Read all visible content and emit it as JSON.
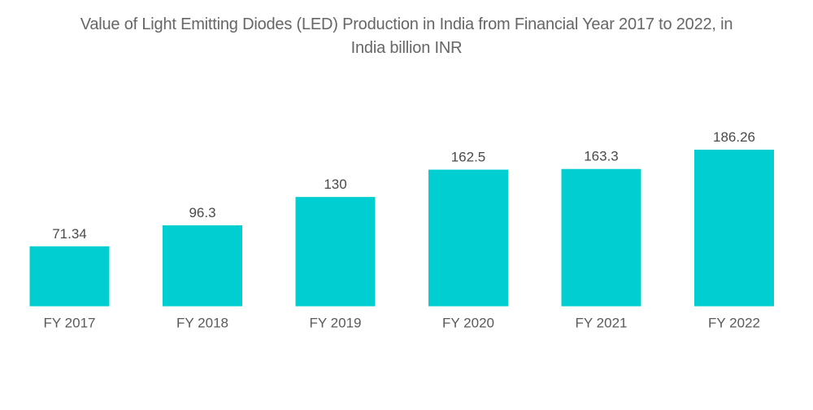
{
  "chart_data": {
    "type": "bar",
    "title_lines": [
      "Value of Light Emitting Diodes (LED) Production in India from Financial Year 2017 to 2022, in",
      "India billion INR"
    ],
    "title": "Value of Light Emitting Diodes (LED) Production in India from Financial Year 2017 to 2022, in India billion INR",
    "categories": [
      "FY 2017",
      "FY 2018",
      "FY 2019",
      "FY 2020",
      "FY 2021",
      "FY 2022"
    ],
    "values": [
      71.34,
      96.3,
      130,
      162.5,
      163.3,
      186.26
    ],
    "value_labels": [
      "71.34",
      "96.3",
      "130",
      "162.5",
      "163.3",
      "186.26"
    ],
    "xlabel": "",
    "ylabel": "",
    "ylim": [
      0,
      186.26
    ],
    "grid": false,
    "legend": "none",
    "bar_color": "#00CED1"
  }
}
